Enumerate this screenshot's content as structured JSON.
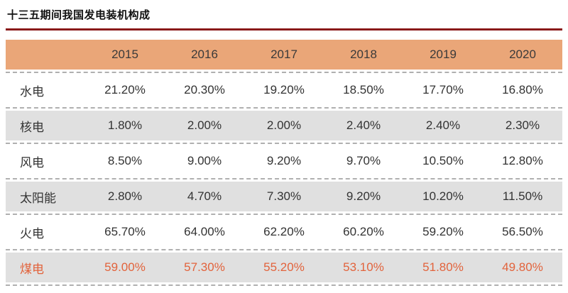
{
  "title": "十三五期间我国发电装机构成",
  "colors": {
    "header_bg": "#EAA678",
    "row_alt_bg": "#E0E0E0",
    "highlight_text": "#E2633C",
    "title_rule": "#8A1A1A"
  },
  "chart_data": {
    "type": "table",
    "title": "十三五期间我国发电装机构成",
    "columns": [
      "2015",
      "2016",
      "2017",
      "2018",
      "2019",
      "2020"
    ],
    "rows": [
      {
        "label": "水电",
        "values": [
          "21.20%",
          "20.30%",
          "19.20%",
          "18.50%",
          "17.70%",
          "16.80%"
        ],
        "highlight": false
      },
      {
        "label": "核电",
        "values": [
          "1.80%",
          "2.00%",
          "2.00%",
          "2.40%",
          "2.40%",
          "2.30%"
        ],
        "highlight": false
      },
      {
        "label": "风电",
        "values": [
          "8.50%",
          "9.00%",
          "9.20%",
          "9.70%",
          "10.50%",
          "12.80%"
        ],
        "highlight": false
      },
      {
        "label": "太阳能",
        "values": [
          "2.80%",
          "4.70%",
          "7.30%",
          "9.20%",
          "10.20%",
          "11.50%"
        ],
        "highlight": false
      },
      {
        "label": "火电",
        "values": [
          "65.70%",
          "64.00%",
          "62.20%",
          "60.20%",
          "59.20%",
          "56.50%"
        ],
        "highlight": false
      },
      {
        "label": "煤电",
        "values": [
          "59.00%",
          "57.30%",
          "55.20%",
          "53.10%",
          "51.80%",
          "49.80%"
        ],
        "highlight": true
      }
    ]
  }
}
